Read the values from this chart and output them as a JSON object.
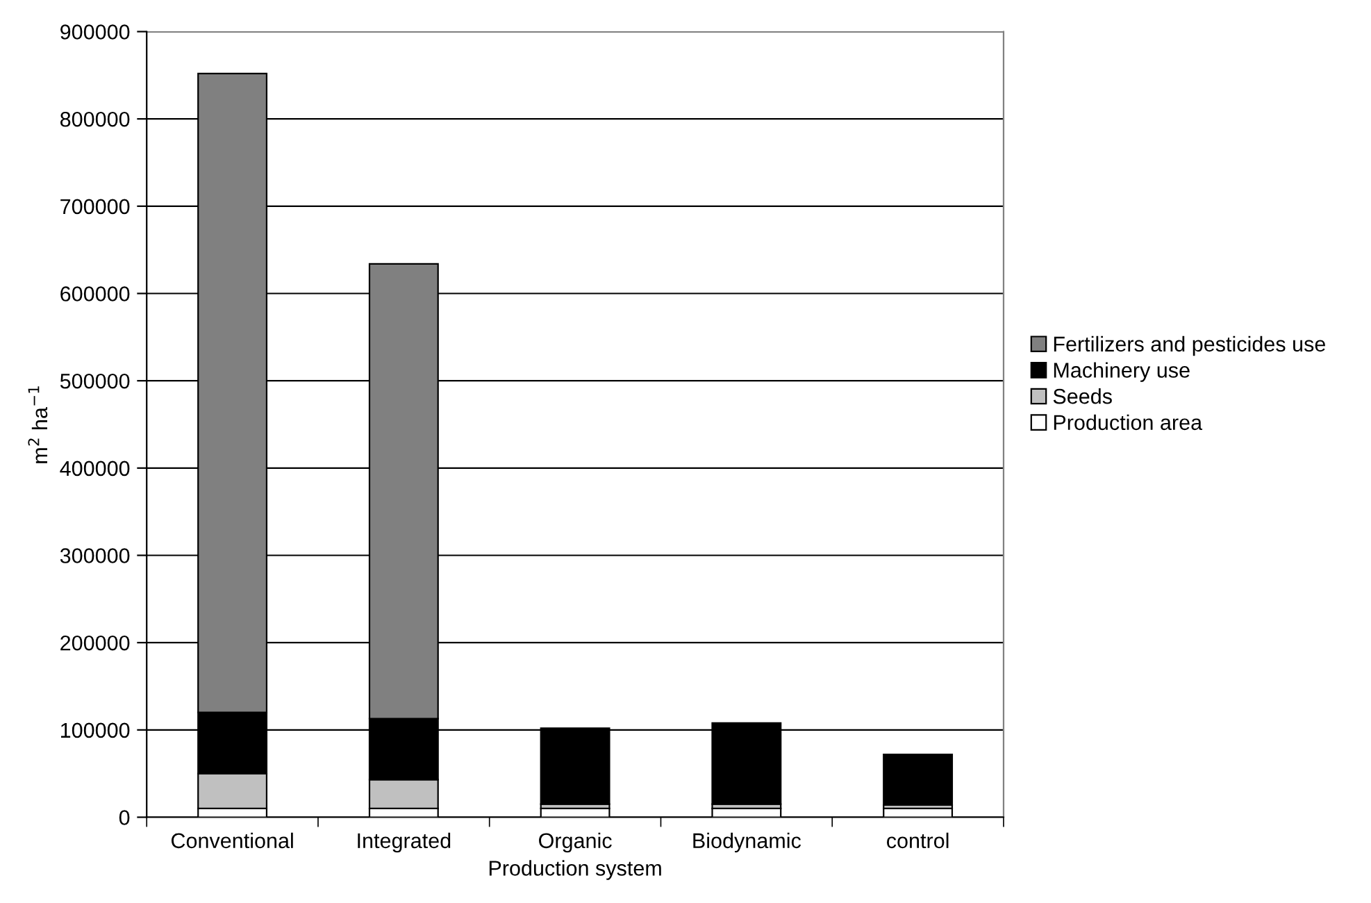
{
  "chart_data": {
    "type": "bar",
    "stacked": true,
    "xlabel": "Production system",
    "ylabel": "m$^{2}$ ha$^{−1}$",
    "categories": [
      "Conventional",
      "Integrated",
      "Organic",
      "Biodynamic",
      "control"
    ],
    "series": [
      {
        "name": "Production area",
        "color": "#ffffff",
        "values": [
          10000,
          10000,
          10000,
          10000,
          10000
        ]
      },
      {
        "name": "Seeds",
        "color": "#c0c0c0",
        "values": [
          40000,
          33000,
          5000,
          5000,
          4000
        ]
      },
      {
        "name": "Machinery use",
        "color": "#000000",
        "values": [
          70000,
          70000,
          87000,
          93000,
          58000
        ]
      },
      {
        "name": "Fertilizers and pesticides use",
        "color": "#808080",
        "values": [
          732000,
          521000,
          null,
          null,
          null
        ]
      }
    ],
    "ylim": [
      0,
      900000
    ],
    "yticks": [
      0,
      100000,
      200000,
      300000,
      400000,
      500000,
      600000,
      700000,
      800000,
      900000
    ],
    "grid": "y",
    "legend": "right"
  }
}
